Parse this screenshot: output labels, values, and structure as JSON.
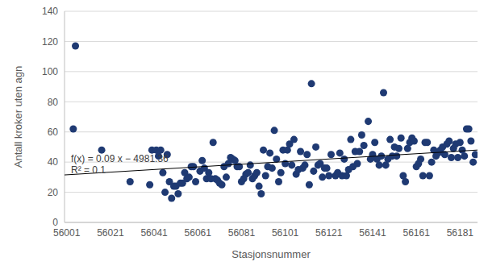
{
  "chart_data": {
    "type": "scatter",
    "x_label": "Stasjonsnummer",
    "y_label": "Antall kroker uten agn",
    "x": [
      56004,
      56005,
      56017,
      56030,
      56039,
      56040,
      56042,
      56043,
      56044,
      56045,
      56046,
      56047,
      56048,
      56049,
      56050,
      56051,
      56052,
      56053,
      56054,
      56055,
      56056,
      56057,
      56058,
      56059,
      56060,
      56062,
      56063,
      56064,
      56065,
      56066,
      56067,
      56068,
      56069,
      56070,
      56071,
      56072,
      56073,
      56074,
      56075,
      56076,
      56077,
      56078,
      56079,
      56080,
      56081,
      56082,
      56083,
      56084,
      56085,
      56086,
      56087,
      56088,
      56089,
      56090,
      56091,
      56092,
      56093,
      56094,
      56095,
      56096,
      56097,
      56098,
      56099,
      56100,
      56101,
      56102,
      56103,
      56104,
      56105,
      56106,
      56107,
      56108,
      56109,
      56110,
      56111,
      56112,
      56113,
      56114,
      56115,
      56116,
      56117,
      56118,
      56119,
      56120,
      56121,
      56122,
      56124,
      56125,
      56126,
      56127,
      56128,
      56129,
      56130,
      56131,
      56132,
      56133,
      56134,
      56135,
      56136,
      56137,
      56139,
      56140,
      56141,
      56142,
      56143,
      56144,
      56145,
      56146,
      56147,
      56148,
      56149,
      56150,
      56151,
      56152,
      56153,
      56154,
      56155,
      56156,
      56157,
      56158,
      56159,
      56160,
      56161,
      56162,
      56163,
      56164,
      56165,
      56166,
      56167,
      56168,
      56169,
      56170,
      56171,
      56172,
      56173,
      56174,
      56175,
      56176,
      56177,
      56178,
      56179,
      56180,
      56181,
      56182,
      56183,
      56184,
      56185,
      56186,
      56187,
      56188
    ],
    "values": [
      62,
      117,
      48,
      27,
      25,
      48,
      48,
      44,
      48,
      33,
      20,
      45,
      27,
      16,
      24,
      24,
      19,
      26,
      26,
      33,
      29,
      30,
      37,
      37,
      27,
      34,
      41,
      36,
      29,
      33,
      29,
      53,
      29,
      28,
      26,
      25,
      37,
      30,
      39,
      43,
      42,
      41,
      37,
      37,
      27,
      29,
      32,
      33,
      38,
      29,
      31,
      33,
      24,
      19,
      48,
      31,
      37,
      46,
      36,
      61,
      42,
      27,
      33,
      48,
      39,
      48,
      52,
      38,
      55,
      32,
      35,
      47,
      36,
      38,
      45,
      25,
      92,
      34,
      50,
      38,
      39,
      30,
      36,
      36,
      31,
      45,
      31,
      33,
      46,
      31,
      42,
      31,
      35,
      55,
      37,
      47,
      39,
      47,
      58,
      51,
      67,
      42,
      45,
      53,
      42,
      38,
      44,
      86,
      38,
      42,
      55,
      44,
      50,
      44,
      49,
      56,
      31,
      27,
      49,
      53,
      56,
      54,
      37,
      39,
      42,
      31,
      53,
      53,
      31,
      40,
      48,
      44,
      46,
      48,
      50,
      45,
      52,
      54,
      43,
      49,
      52,
      43,
      53,
      48,
      44,
      62,
      62,
      54,
      40,
      45
    ],
    "color": "#1f3a73",
    "marker": "circle",
    "trendline": {
      "x": [
        56000,
        56189
      ],
      "values": [
        31.5,
        48
      ],
      "color": "#000000"
    },
    "annotations": [
      "f(x) = 0.09 x − 4981.36",
      "R² = 0.1"
    ],
    "xlim": [
      56000,
      56189
    ],
    "xticks": [
      56001,
      56021,
      56041,
      56061,
      56081,
      56101,
      56121,
      56141,
      56161,
      56181
    ],
    "ylim": [
      0,
      140
    ],
    "yticks": [
      0,
      20,
      40,
      60,
      80,
      100,
      120,
      140
    ],
    "grid": true
  }
}
